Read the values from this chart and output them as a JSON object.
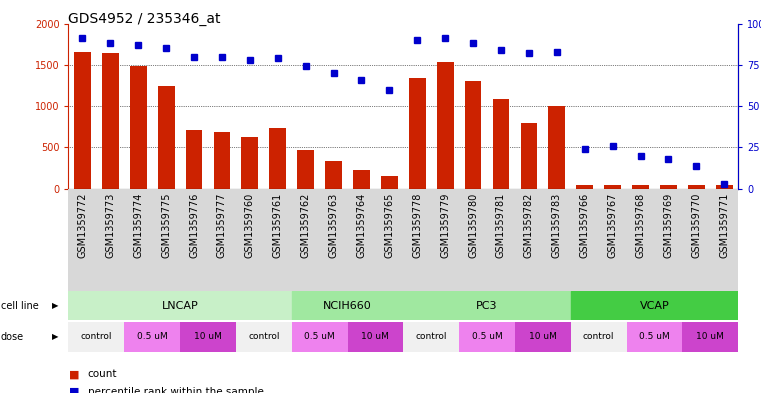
{
  "title": "GDS4952 / 235346_at",
  "samples": [
    "GSM1359772",
    "GSM1359773",
    "GSM1359774",
    "GSM1359775",
    "GSM1359776",
    "GSM1359777",
    "GSM1359760",
    "GSM1359761",
    "GSM1359762",
    "GSM1359763",
    "GSM1359764",
    "GSM1359765",
    "GSM1359778",
    "GSM1359779",
    "GSM1359780",
    "GSM1359781",
    "GSM1359782",
    "GSM1359783",
    "GSM1359766",
    "GSM1359767",
    "GSM1359768",
    "GSM1359769",
    "GSM1359770",
    "GSM1359771"
  ],
  "counts": [
    1660,
    1640,
    1480,
    1240,
    710,
    690,
    620,
    730,
    470,
    340,
    220,
    150,
    1340,
    1540,
    1310,
    1090,
    800,
    1000,
    40,
    40,
    40,
    40,
    40,
    50
  ],
  "percentiles": [
    91,
    88,
    87,
    85,
    80,
    80,
    78,
    79,
    74,
    70,
    66,
    60,
    90,
    91,
    88,
    84,
    82,
    83,
    24,
    26,
    20,
    18,
    14,
    3
  ],
  "cell_line_spans": [
    {
      "label": "LNCAP",
      "start": 0,
      "end": 8,
      "color": "#c8f0c8"
    },
    {
      "label": "NCIH660",
      "start": 8,
      "end": 12,
      "color": "#a0e8a0"
    },
    {
      "label": "PC3",
      "start": 12,
      "end": 18,
      "color": "#a0e8a0"
    },
    {
      "label": "VCAP",
      "start": 18,
      "end": 24,
      "color": "#44cc44"
    }
  ],
  "dose_spans": [
    {
      "label": "control",
      "start": 0,
      "end": 2,
      "color": "#f0f0f0"
    },
    {
      "label": "0.5 uM",
      "start": 2,
      "end": 4,
      "color": "#ee82ee"
    },
    {
      "label": "10 uM",
      "start": 4,
      "end": 6,
      "color": "#cc44cc"
    },
    {
      "label": "control",
      "start": 6,
      "end": 8,
      "color": "#f0f0f0"
    },
    {
      "label": "0.5 uM",
      "start": 8,
      "end": 10,
      "color": "#ee82ee"
    },
    {
      "label": "10 uM",
      "start": 10,
      "end": 12,
      "color": "#cc44cc"
    },
    {
      "label": "control",
      "start": 12,
      "end": 14,
      "color": "#f0f0f0"
    },
    {
      "label": "0.5 uM",
      "start": 14,
      "end": 16,
      "color": "#ee82ee"
    },
    {
      "label": "10 uM",
      "start": 16,
      "end": 18,
      "color": "#cc44cc"
    },
    {
      "label": "control",
      "start": 18,
      "end": 20,
      "color": "#f0f0f0"
    },
    {
      "label": "0.5 uM",
      "start": 20,
      "end": 22,
      "color": "#ee82ee"
    },
    {
      "label": "10 uM",
      "start": 22,
      "end": 24,
      "color": "#cc44cc"
    }
  ],
  "ylim_left": [
    0,
    2000
  ],
  "ylim_right": [
    0,
    100
  ],
  "yticks_left": [
    0,
    500,
    1000,
    1500,
    2000
  ],
  "yticks_right": [
    0,
    25,
    50,
    75,
    100
  ],
  "bar_color": "#cc2200",
  "dot_color": "#0000cc",
  "bg_color": "#ffffff",
  "grid_color": "#000000",
  "xlabel_bg": "#d8d8d8",
  "title_fontsize": 10,
  "tick_fontsize": 7,
  "label_fontsize": 8,
  "annotation_fontsize": 8
}
